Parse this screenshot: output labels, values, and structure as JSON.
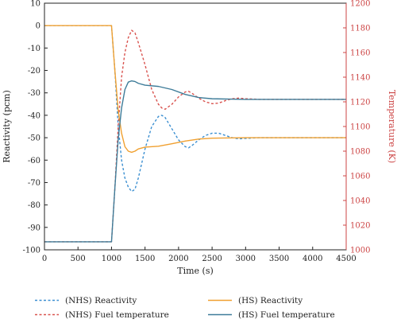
{
  "chart_data": {
    "type": "line",
    "xlabel": "Time (s)",
    "ylabel_left": "Reactivity (pcm)",
    "ylabel_right": "Temperature (K)",
    "xlim": [
      0,
      4500
    ],
    "ylim_left": [
      -100,
      10
    ],
    "ylim_right": [
      1000,
      1200
    ],
    "x_ticks": [
      0,
      500,
      1000,
      1500,
      2000,
      2500,
      3000,
      3500,
      4000,
      4500
    ],
    "y_left_ticks": [
      10,
      0,
      -10,
      -20,
      -30,
      -40,
      -50,
      -60,
      -70,
      -80,
      -90,
      -100
    ],
    "y_right_ticks": [
      1200,
      1180,
      1160,
      1140,
      1120,
      1100,
      1080,
      1060,
      1040,
      1020,
      1000
    ],
    "grid": false,
    "legend_position": "bottom",
    "colors": {
      "blue": "#3b8fd1",
      "red": "#d9534f",
      "orange": "#f0a030",
      "teal": "#3e7c99",
      "right_axis": "#cc4444"
    },
    "series": [
      {
        "name": "(NHS) Reactivity",
        "axis": "left",
        "style": "dashed",
        "color": "#3b8fd1",
        "points": [
          [
            0,
            0
          ],
          [
            1000,
            0
          ],
          [
            1050,
            -20
          ],
          [
            1100,
            -45
          ],
          [
            1150,
            -60
          ],
          [
            1200,
            -68
          ],
          [
            1250,
            -72
          ],
          [
            1300,
            -74
          ],
          [
            1350,
            -73
          ],
          [
            1400,
            -68
          ],
          [
            1500,
            -55
          ],
          [
            1600,
            -45
          ],
          [
            1700,
            -40.5
          ],
          [
            1750,
            -40
          ],
          [
            1800,
            -41
          ],
          [
            1900,
            -46
          ],
          [
            2000,
            -51
          ],
          [
            2100,
            -54
          ],
          [
            2150,
            -54.5
          ],
          [
            2200,
            -53.5
          ],
          [
            2300,
            -51
          ],
          [
            2400,
            -49
          ],
          [
            2500,
            -48
          ],
          [
            2600,
            -48
          ],
          [
            2700,
            -49
          ],
          [
            2800,
            -50
          ],
          [
            2900,
            -50.5
          ],
          [
            3000,
            -50.3
          ],
          [
            3200,
            -50
          ],
          [
            3500,
            -50
          ],
          [
            4000,
            -50
          ],
          [
            4500,
            -50
          ]
        ]
      },
      {
        "name": "(NHS) Fuel temperature",
        "axis": "right",
        "style": "dashed",
        "color": "#d9534f",
        "points": [
          [
            0,
            1006.5
          ],
          [
            1000,
            1006.5
          ],
          [
            1050,
            1050
          ],
          [
            1100,
            1100
          ],
          [
            1150,
            1140
          ],
          [
            1200,
            1160
          ],
          [
            1250,
            1172
          ],
          [
            1300,
            1178
          ],
          [
            1350,
            1176
          ],
          [
            1400,
            1168
          ],
          [
            1500,
            1150
          ],
          [
            1600,
            1130
          ],
          [
            1700,
            1118
          ],
          [
            1750,
            1115
          ],
          [
            1800,
            1114
          ],
          [
            1900,
            1118
          ],
          [
            2000,
            1124
          ],
          [
            2100,
            1128
          ],
          [
            2150,
            1128.5
          ],
          [
            2200,
            1127
          ],
          [
            2300,
            1123
          ],
          [
            2400,
            1120
          ],
          [
            2500,
            1118.5
          ],
          [
            2600,
            1119
          ],
          [
            2700,
            1121
          ],
          [
            2800,
            1122.5
          ],
          [
            2900,
            1123
          ],
          [
            3000,
            1122.5
          ],
          [
            3200,
            1122
          ],
          [
            3500,
            1122
          ],
          [
            4000,
            1122
          ],
          [
            4500,
            1122
          ]
        ]
      },
      {
        "name": "(HS) Reactivity",
        "axis": "left",
        "style": "solid",
        "color": "#f0a030",
        "points": [
          [
            0,
            0
          ],
          [
            1000,
            0
          ],
          [
            1050,
            -20
          ],
          [
            1100,
            -38
          ],
          [
            1150,
            -48
          ],
          [
            1200,
            -54
          ],
          [
            1250,
            -56
          ],
          [
            1300,
            -56.5
          ],
          [
            1350,
            -56
          ],
          [
            1400,
            -55
          ],
          [
            1500,
            -54.2
          ],
          [
            1700,
            -53.8
          ],
          [
            1900,
            -52.7
          ],
          [
            2100,
            -51.5
          ],
          [
            2300,
            -50.6
          ],
          [
            2500,
            -50.2
          ],
          [
            3000,
            -50
          ],
          [
            3500,
            -50
          ],
          [
            4000,
            -50
          ],
          [
            4500,
            -50
          ]
        ]
      },
      {
        "name": "(HS) Fuel temperature",
        "axis": "right",
        "style": "solid",
        "color": "#3e7c99",
        "points": [
          [
            0,
            1006.5
          ],
          [
            1000,
            1006.5
          ],
          [
            1050,
            1050
          ],
          [
            1100,
            1090
          ],
          [
            1150,
            1115
          ],
          [
            1200,
            1130
          ],
          [
            1250,
            1136
          ],
          [
            1300,
            1137
          ],
          [
            1350,
            1136.5
          ],
          [
            1400,
            1135
          ],
          [
            1500,
            1133.5
          ],
          [
            1700,
            1132.5
          ],
          [
            1900,
            1130
          ],
          [
            2100,
            1126
          ],
          [
            2300,
            1123.5
          ],
          [
            2500,
            1122.5
          ],
          [
            3000,
            1122
          ],
          [
            3500,
            1122
          ],
          [
            4000,
            1122
          ],
          [
            4500,
            1122
          ]
        ]
      }
    ]
  }
}
